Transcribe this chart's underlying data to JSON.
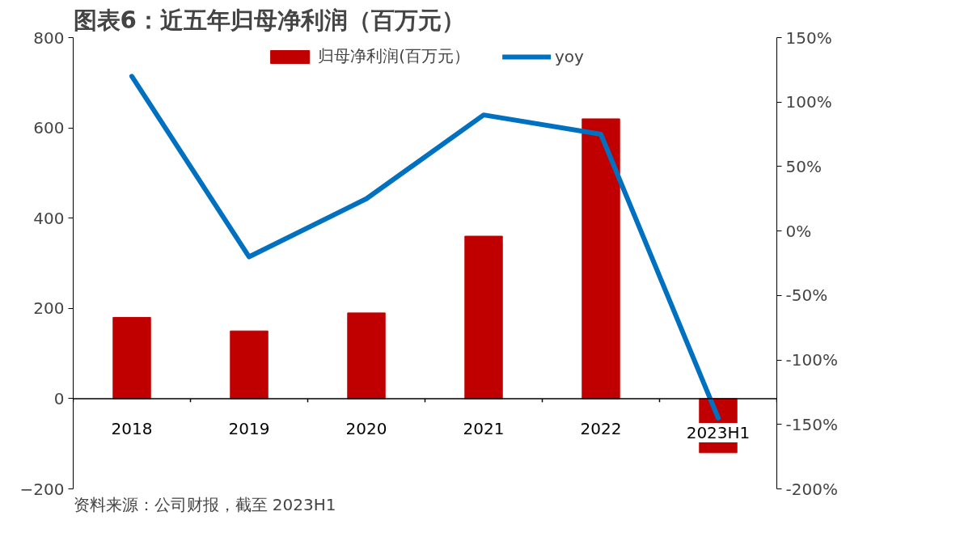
{
  "chart_data": {
    "type": "bar",
    "title": "图表6：近五年归母净利润（百万元）",
    "categories": [
      "2018",
      "2019",
      "2020",
      "2021",
      "2022",
      "2023H1"
    ],
    "series": [
      {
        "name": "归母净利润(百万元）",
        "color": "#c00000",
        "values": [
          180,
          150,
          190,
          360,
          620,
          -120
        ]
      },
      {
        "name": "yoy",
        "type": "line",
        "axis": "y2",
        "color": "#0070c0",
        "values": [
          120,
          -20,
          25,
          90,
          75,
          -145
        ]
      }
    ],
    "ylim": [
      -200,
      800
    ],
    "yticks": [
      -200,
      0,
      200,
      400,
      600,
      800
    ],
    "y2lim": [
      -200,
      150
    ],
    "y2ticks": [
      {
        "value": -200,
        "label": "-200%"
      },
      {
        "value": -150,
        "label": "-150%"
      },
      {
        "value": -100,
        "label": "-100%"
      },
      {
        "value": -50,
        "label": "-50%"
      },
      {
        "value": 0,
        "label": "0%"
      },
      {
        "value": 50,
        "label": "50%"
      },
      {
        "value": 100,
        "label": "100%"
      },
      {
        "value": 150,
        "label": "150%"
      }
    ],
    "legend": "top",
    "grid": false,
    "annotations": [
      "资料来源：公司财报，截至 2023H1"
    ]
  }
}
